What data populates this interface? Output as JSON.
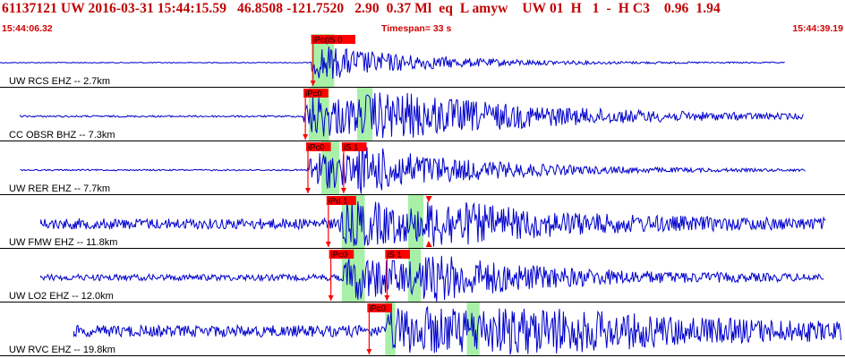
{
  "header": {
    "event_line": "61137121 UW 2016-03-31 15:44:15.59   46.8508 -121.7520   2.90  0.37 Ml  eq  L amyw    UW 01  H   1  -  H C3    0.96  1.94",
    "start_time": "15:44:06.32",
    "timespan": "Timespan=  33 s",
    "end_time": "15:44:39.19"
  },
  "colors": {
    "header_text": "#c00000",
    "trace": "#0000cc",
    "pick_box": "#ff0000",
    "window_highlight": "#a8f0a8",
    "separator": "#000000"
  },
  "channels": [
    {
      "label": "UW RCS EHZ -- 2.7km",
      "picks": [
        {
          "label": "iPc(iS 0",
          "time": 12.2
        }
      ],
      "windows": [
        [
          12.2,
          13.1
        ]
      ],
      "trace": {
        "start": 0.0,
        "end": 30.8,
        "onset": 12.2,
        "amp_pre": 0.5,
        "amp_peak": 22,
        "decay": 4.0,
        "s_time": null
      }
    },
    {
      "label": "CC OBSR BHZ -- 7.3km",
      "picks": [
        {
          "label": "iPc0",
          "time": 11.9
        }
      ],
      "windows": [
        [
          12.1,
          12.9
        ],
        [
          14.0,
          14.6
        ]
      ],
      "trace": {
        "start": 0.8,
        "end": 31.5,
        "onset": 11.9,
        "amp_pre": 1.0,
        "amp_peak": 26,
        "decay": 7.0,
        "s_time": 14.3
      }
    },
    {
      "label": "UW RER EHZ -- 7.7km",
      "picks": [
        {
          "label": "iPc0",
          "time": 12.0
        },
        {
          "label": "iS 1",
          "time": 13.4
        }
      ],
      "windows": [
        [
          12.6,
          13.3
        ]
      ],
      "trace": {
        "start": 0.8,
        "end": 31.6,
        "onset": 12.0,
        "amp_pre": 0.8,
        "amp_peak": 24,
        "decay": 5.0,
        "s_time": 14.0
      }
    },
    {
      "label": "UW FMW EHZ -- 11.8km",
      "picks": [
        {
          "label": "iPd 1",
          "time": 12.8
        },
        {
          "label": "",
          "time": 16.8
        }
      ],
      "windows": [
        [
          13.4,
          14.3
        ],
        [
          16.0,
          16.6
        ]
      ],
      "trace": {
        "start": 1.6,
        "end": 32.4,
        "onset": 13.3,
        "amp_pre": 6.0,
        "amp_peak": 25,
        "decay": 5.0,
        "s_time": 16.7
      }
    },
    {
      "label": "UW LO2 EHZ -- 12.0km",
      "picks": [
        {
          "label": "iPc0",
          "time": 12.9
        },
        {
          "label": "iS 1",
          "time": 15.1
        }
      ],
      "windows": [
        [
          13.4,
          14.3
        ],
        [
          16.0,
          16.5
        ]
      ],
      "trace": {
        "start": 1.6,
        "end": 32.3,
        "onset": 13.4,
        "amp_pre": 3.5,
        "amp_peak": 26,
        "decay": 5.0,
        "s_time": 16.4
      }
    },
    {
      "label": "UW RVC EHZ -- 19.8km",
      "picks": [
        {
          "label": "iPc0",
          "time": 14.4
        }
      ],
      "windows": [
        [
          15.1,
          15.5
        ],
        [
          18.3,
          18.8
        ]
      ],
      "trace": {
        "start": 2.9,
        "end": 33.0,
        "onset": 15.1,
        "amp_pre": 6.5,
        "amp_peak": 27,
        "decay": 8.0,
        "s_time": 18.5
      }
    }
  ]
}
